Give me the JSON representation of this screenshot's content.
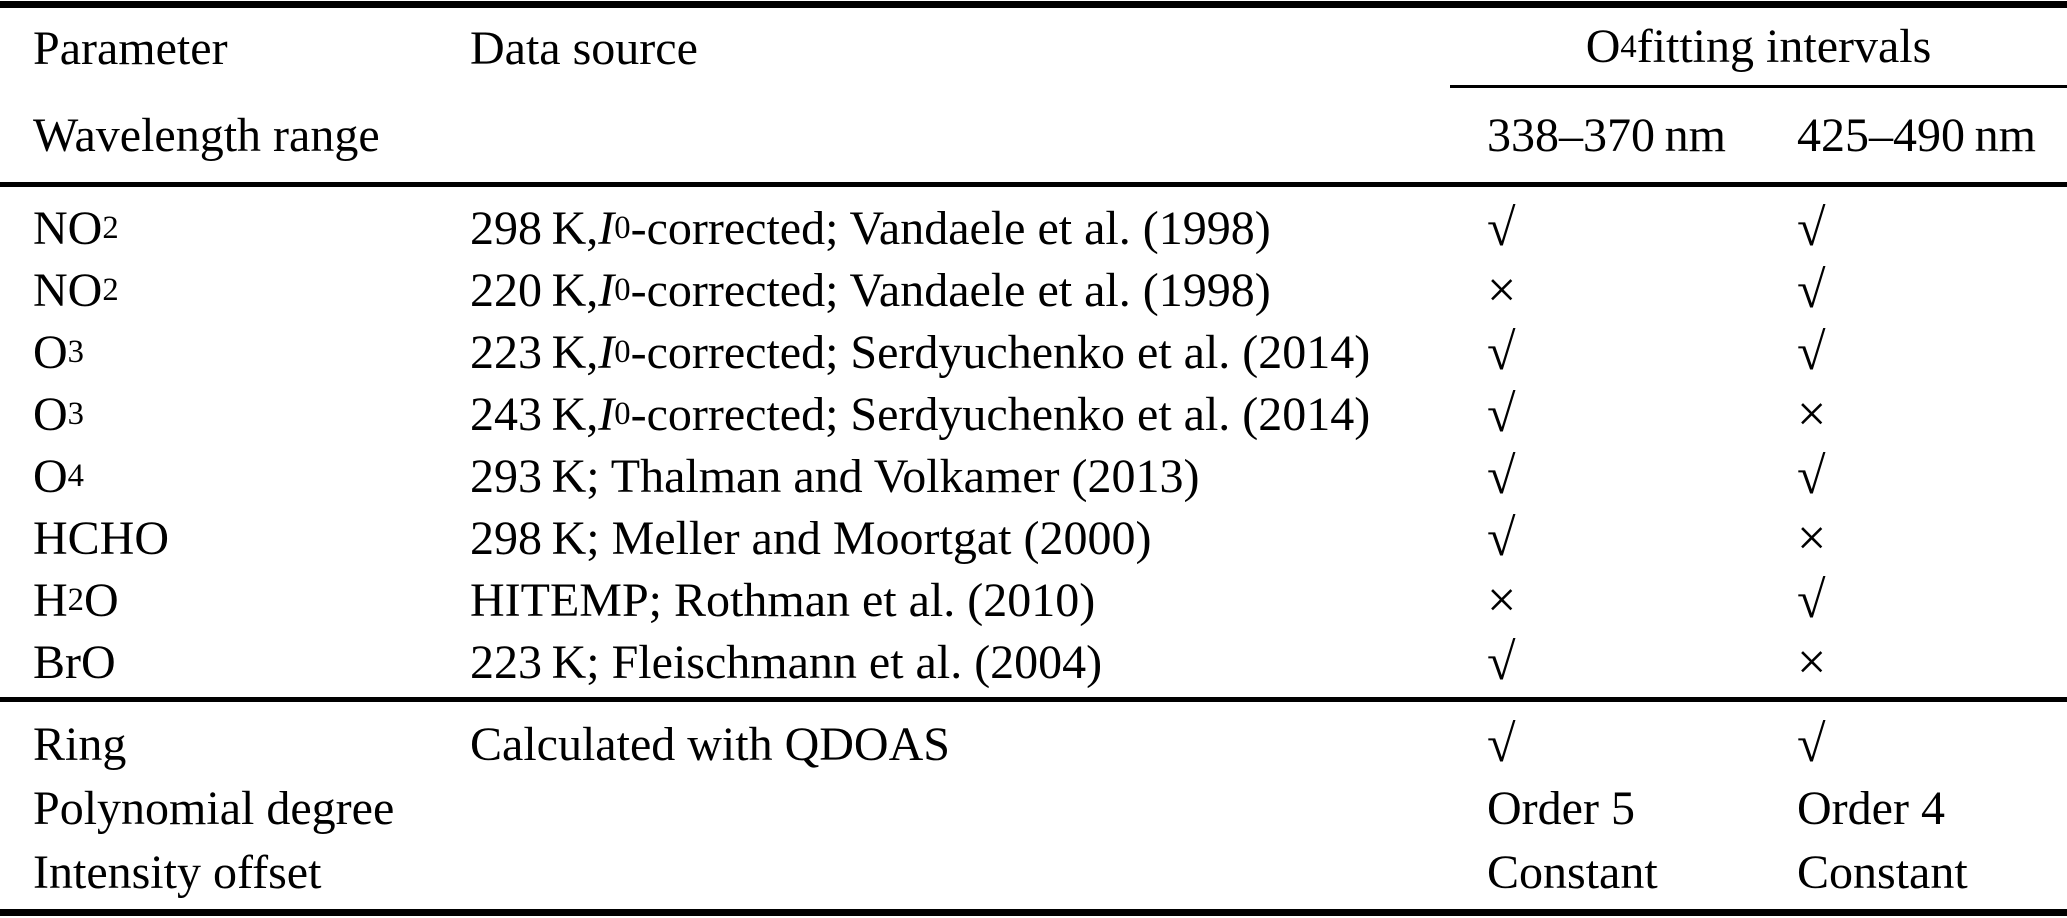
{
  "page": {
    "background_color": "#ffffff",
    "text_color": "#000000"
  },
  "table": {
    "header": {
      "parameter": "Parameter",
      "data_source": "Data source",
      "group": {
        "prefix": "O",
        "sub": "4",
        "suffix": " fitting intervals"
      },
      "wavelength_range": "Wavelength range",
      "interval_1": "338–370 nm",
      "interval_2": "425–490 nm"
    },
    "marks": {
      "check": "√",
      "cross": "×"
    },
    "rows": [
      {
        "param": [
          {
            "t": "NO"
          },
          {
            "t": "2",
            "sub": true
          }
        ],
        "source": [
          {
            "t": "298 K, "
          },
          {
            "t": "I",
            "it": true
          },
          {
            "t": "0",
            "sub": true
          },
          {
            "t": "-corrected; Vandaele et al. (1998)"
          }
        ],
        "interval_1": {
          "mark": "check"
        },
        "interval_2": {
          "mark": "check"
        }
      },
      {
        "param": [
          {
            "t": "NO"
          },
          {
            "t": "2",
            "sub": true
          }
        ],
        "source": [
          {
            "t": "220 K, "
          },
          {
            "t": "I",
            "it": true
          },
          {
            "t": "0",
            "sub": true
          },
          {
            "t": "-corrected; Vandaele et al. (1998)"
          }
        ],
        "interval_1": {
          "mark": "cross"
        },
        "interval_2": {
          "mark": "check"
        }
      },
      {
        "param": [
          {
            "t": "O"
          },
          {
            "t": "3",
            "sub": true
          }
        ],
        "source": [
          {
            "t": "223 K, "
          },
          {
            "t": "I",
            "it": true
          },
          {
            "t": "0",
            "sub": true
          },
          {
            "t": "-corrected; Serdyuchenko et al. (2014)"
          }
        ],
        "interval_1": {
          "mark": "check"
        },
        "interval_2": {
          "mark": "check"
        }
      },
      {
        "param": [
          {
            "t": "O"
          },
          {
            "t": "3",
            "sub": true
          }
        ],
        "source": [
          {
            "t": "243 K, "
          },
          {
            "t": "I",
            "it": true
          },
          {
            "t": "0",
            "sub": true
          },
          {
            "t": "-corrected; Serdyuchenko et al. (2014)"
          }
        ],
        "interval_1": {
          "mark": "check"
        },
        "interval_2": {
          "mark": "cross"
        }
      },
      {
        "param": [
          {
            "t": "O"
          },
          {
            "t": "4",
            "sub": true
          }
        ],
        "source": [
          {
            "t": "293 K; Thalman and Volkamer (2013)"
          }
        ],
        "interval_1": {
          "mark": "check"
        },
        "interval_2": {
          "mark": "check"
        }
      },
      {
        "param": [
          {
            "t": "HCHO"
          }
        ],
        "source": [
          {
            "t": "298 K; Meller and Moortgat (2000)"
          }
        ],
        "interval_1": {
          "mark": "check"
        },
        "interval_2": {
          "mark": "cross"
        }
      },
      {
        "param": [
          {
            "t": "H"
          },
          {
            "t": "2",
            "sub": true
          },
          {
            "t": "O"
          }
        ],
        "source": [
          {
            "t": "HITEMP; Rothman et al. (2010)"
          }
        ],
        "interval_1": {
          "mark": "cross"
        },
        "interval_2": {
          "mark": "check"
        }
      },
      {
        "param": [
          {
            "t": "BrO"
          }
        ],
        "source": [
          {
            "t": "223 K; Fleischmann et al. (2004)"
          }
        ],
        "interval_1": {
          "mark": "check"
        },
        "interval_2": {
          "mark": "cross"
        }
      }
    ],
    "footer_rows": [
      {
        "param": [
          {
            "t": "Ring"
          }
        ],
        "source": [
          {
            "t": "Calculated with QDOAS"
          }
        ],
        "interval_1": {
          "mark": "check"
        },
        "interval_2": {
          "mark": "check"
        }
      },
      {
        "param": [
          {
            "t": "Polynomial degree"
          }
        ],
        "source": [],
        "interval_1": {
          "text": "Order 5"
        },
        "interval_2": {
          "text": "Order 4"
        }
      },
      {
        "param": [
          {
            "t": "Intensity offset"
          }
        ],
        "source": [],
        "interval_1": {
          "text": "Constant"
        },
        "interval_2": {
          "text": "Constant"
        }
      }
    ]
  }
}
